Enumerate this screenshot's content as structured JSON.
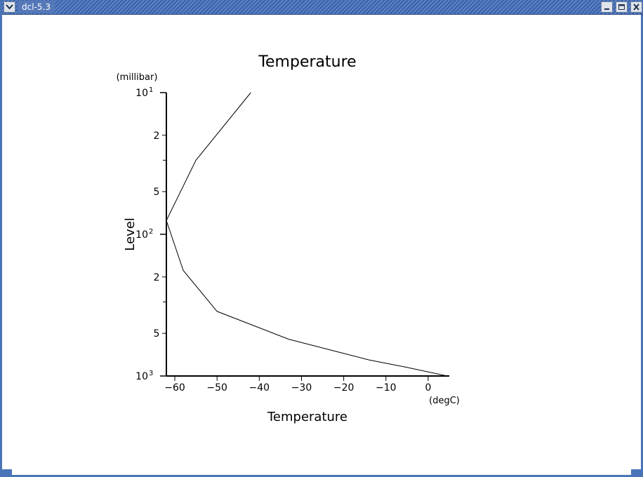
{
  "window": {
    "title": "dcl-5.3"
  },
  "chart_data": {
    "type": "line",
    "title": "Temperature",
    "xlabel": "Temperature",
    "xunit": "(degC)",
    "ylabel": "Level",
    "yunit": "(millibar)",
    "xlim": [
      -62,
      5
    ],
    "ylim": [
      1000,
      10
    ],
    "yscale": "log",
    "grid": false,
    "x_ticks": [
      -60,
      -50,
      -40,
      -30,
      -20,
      -10,
      0
    ],
    "x_tick_labels": [
      "−60",
      "−50",
      "−40",
      "−30",
      "−20",
      "−10",
      "0"
    ],
    "y_major_ticks": [
      {
        "value": 10,
        "label": "10",
        "exp": "1"
      },
      {
        "value": 100,
        "label": "10",
        "exp": "2"
      },
      {
        "value": 1000,
        "label": "10",
        "exp": "3"
      }
    ],
    "y_minor_ticks": [
      {
        "value": 20,
        "label": "2"
      },
      {
        "value": 50,
        "label": "5"
      },
      {
        "value": 200,
        "label": "2"
      },
      {
        "value": 500,
        "label": "5"
      }
    ],
    "y_unlabeled_ticks": [
      30,
      300
    ],
    "series": [
      {
        "points": [
          {
            "x": 4.5,
            "y": 1000
          },
          {
            "x": -5,
            "y": 870
          },
          {
            "x": -14,
            "y": 770
          },
          {
            "x": -33,
            "y": 550
          },
          {
            "x": -50,
            "y": 350
          },
          {
            "x": -58,
            "y": 180
          },
          {
            "x": -62,
            "y": 80
          },
          {
            "x": -55,
            "y": 30
          },
          {
            "x": -42,
            "y": 10
          }
        ]
      }
    ]
  }
}
